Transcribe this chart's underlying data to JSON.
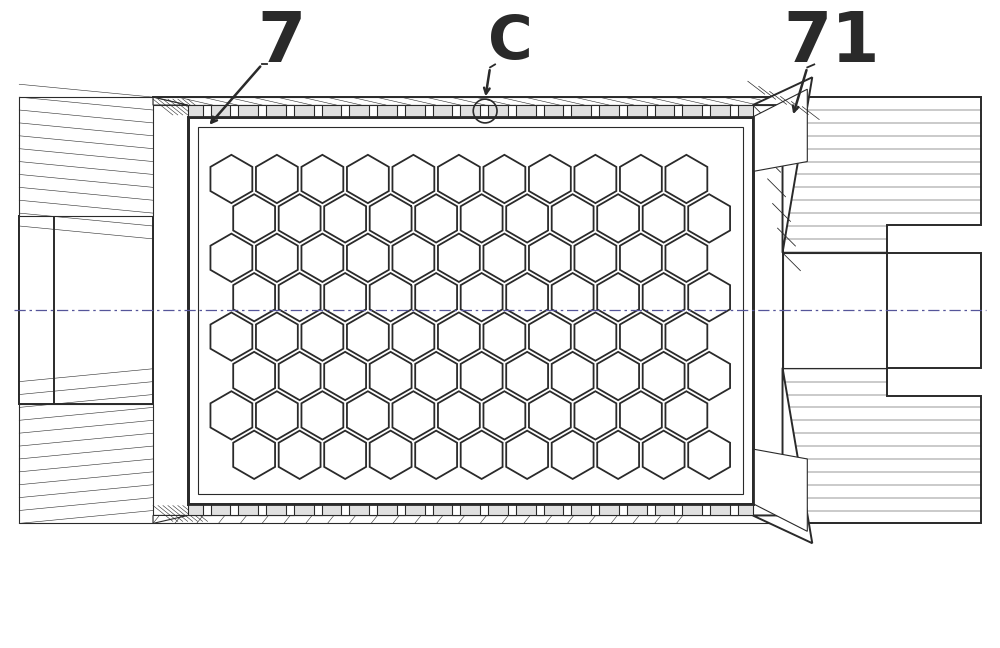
{
  "bg_color": "#ffffff",
  "line_color": "#2a2a2a",
  "label_7": "7",
  "label_c": "C",
  "label_71": "71",
  "fig_width": 10.0,
  "fig_height": 6.48,
  "dpi": 100
}
